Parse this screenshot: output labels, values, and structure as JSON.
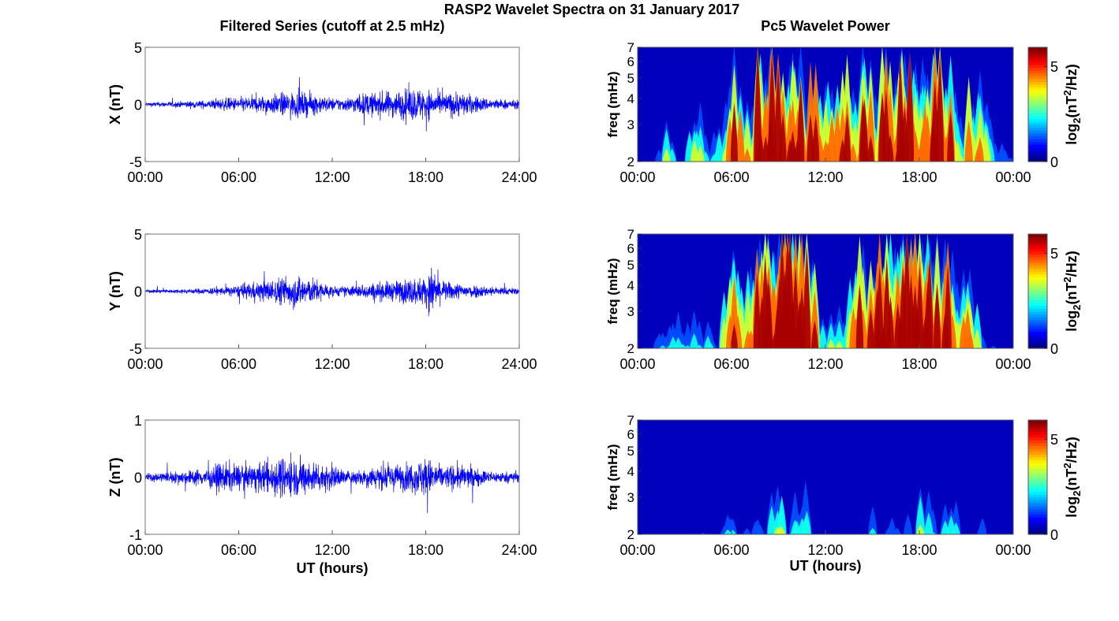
{
  "figure_title": "RASP2 Wavelet Spectra on 31 January 2017",
  "left_column_title": "Filtered Series (cutoff at 2.5 mHz)",
  "right_column_title": "Pc5 Wavelet Power",
  "colors": {
    "trace": "#0000ff",
    "axes": "#000000",
    "background": "#ffffff"
  },
  "chart_data": [
    {
      "type": "line",
      "title": "Filtered Series (cutoff at 2.5 mHz)",
      "ylabel": "X (nT)",
      "xlabel": "",
      "xlim_hours": [
        0,
        24
      ],
      "ylim": [
        -5,
        5
      ],
      "xticks": [
        "00:00",
        "06:00",
        "12:00",
        "18:00",
        "24:00"
      ],
      "yticks": [
        "-5",
        "0",
        "5"
      ],
      "envelope": {
        "hours": [
          0,
          2,
          4,
          5,
          6,
          8,
          9,
          10,
          11,
          12,
          13,
          14,
          15,
          16,
          17,
          18,
          19,
          20,
          21,
          22,
          24
        ],
        "amplitude_nT": [
          0.2,
          0.3,
          0.4,
          0.6,
          0.7,
          0.9,
          1.2,
          1.2,
          1.0,
          0.6,
          0.7,
          1.1,
          1.2,
          1.3,
          1.6,
          1.6,
          1.0,
          1.3,
          0.9,
          0.6,
          0.4
        ]
      }
    },
    {
      "type": "heatmap",
      "title": "Pc5 Wavelet Power",
      "ylabel": "freq (mHz)",
      "xlabel": "",
      "xlim_hours": [
        0,
        24
      ],
      "ylim_mHz": [
        2,
        7
      ],
      "yscale": "log",
      "xticks": [
        "00:00",
        "06:00",
        "12:00",
        "18:00",
        "00:00"
      ],
      "yticks": [
        "2",
        "3",
        "4",
        "5",
        "6",
        "7"
      ],
      "colorbar": {
        "label_base": "log",
        "label_sub": "2",
        "label_mid": "(nT",
        "label_sup": "2",
        "label_end": "/Hz)",
        "range": [
          0,
          6
        ],
        "ticks": [
          "0",
          "5"
        ],
        "colormap": "jet"
      },
      "activity": {
        "hours": [
          0,
          1,
          2,
          3,
          4,
          5,
          6,
          7,
          8,
          9,
          10,
          11,
          12,
          13,
          14,
          15,
          16,
          17,
          18,
          19,
          20,
          21,
          22,
          23,
          24
        ],
        "level": [
          0.05,
          0.2,
          0.45,
          0.35,
          0.55,
          0.3,
          0.8,
          0.75,
          0.95,
          1.0,
          0.95,
          0.85,
          0.6,
          0.7,
          0.85,
          0.9,
          0.85,
          0.95,
          1.0,
          0.9,
          0.85,
          0.75,
          0.6,
          0.35,
          0.1
        ]
      }
    },
    {
      "type": "line",
      "ylabel": "Y (nT)",
      "xlabel": "",
      "xlim_hours": [
        0,
        24
      ],
      "ylim": [
        -5,
        5
      ],
      "xticks": [
        "00:00",
        "06:00",
        "12:00",
        "18:00",
        "24:00"
      ],
      "yticks": [
        "-5",
        "0",
        "5"
      ],
      "envelope": {
        "hours": [
          0,
          2,
          4,
          5,
          6,
          7,
          8,
          9,
          10,
          11,
          12,
          13,
          14,
          15,
          16,
          17,
          18,
          18.5,
          19,
          20,
          21,
          22,
          24
        ],
        "amplitude_nT": [
          0.15,
          0.2,
          0.3,
          0.4,
          0.6,
          0.9,
          1.1,
          1.5,
          1.6,
          1.1,
          0.5,
          0.5,
          0.7,
          0.9,
          1.0,
          1.3,
          1.4,
          2.5,
          1.0,
          0.8,
          0.7,
          0.5,
          0.3
        ]
      }
    },
    {
      "type": "heatmap",
      "ylabel": "freq (mHz)",
      "xlabel": "",
      "xlim_hours": [
        0,
        24
      ],
      "ylim_mHz": [
        2,
        7
      ],
      "yscale": "log",
      "xticks": [
        "00:00",
        "06:00",
        "12:00",
        "18:00",
        "00:00"
      ],
      "yticks": [
        "2",
        "3",
        "4",
        "5",
        "6",
        "7"
      ],
      "colorbar": {
        "label_base": "log",
        "label_sub": "2",
        "label_mid": "(nT",
        "label_sup": "2",
        "label_end": "/Hz)",
        "range": [
          0,
          6
        ],
        "ticks": [
          "0",
          "5"
        ],
        "colormap": "jet"
      },
      "activity": {
        "hours": [
          0,
          1,
          2,
          3,
          4,
          5,
          6,
          7,
          8,
          9,
          10,
          11,
          12,
          13,
          14,
          15,
          16,
          17,
          18,
          19,
          20,
          21,
          22,
          23,
          24
        ],
        "level": [
          0.05,
          0.15,
          0.35,
          0.3,
          0.4,
          0.3,
          0.75,
          0.8,
          0.9,
          1.0,
          1.0,
          0.95,
          0.4,
          0.55,
          0.8,
          0.9,
          0.9,
          0.9,
          1.0,
          0.9,
          0.85,
          0.8,
          0.35,
          0.1,
          0.05
        ]
      }
    },
    {
      "type": "line",
      "ylabel": "Z (nT)",
      "xlabel": "UT (hours)",
      "xlim_hours": [
        0,
        24
      ],
      "ylim": [
        -1,
        1
      ],
      "xticks": [
        "00:00",
        "06:00",
        "12:00",
        "18:00",
        "24:00"
      ],
      "yticks": [
        "-1",
        "0",
        "1"
      ],
      "envelope": {
        "hours": [
          0,
          2,
          4,
          5,
          6,
          7,
          8,
          9,
          10,
          11,
          12,
          13,
          14,
          15,
          16,
          17,
          18,
          19,
          20,
          21,
          22,
          24
        ],
        "amplitude_nT": [
          0.08,
          0.12,
          0.18,
          0.3,
          0.25,
          0.25,
          0.35,
          0.4,
          0.35,
          0.3,
          0.25,
          0.12,
          0.18,
          0.25,
          0.25,
          0.28,
          0.4,
          0.22,
          0.25,
          0.2,
          0.12,
          0.1
        ]
      }
    },
    {
      "type": "heatmap",
      "ylabel": "freq (mHz)",
      "xlabel": "UT (hours)",
      "xlim_hours": [
        0,
        24
      ],
      "ylim_mHz": [
        2,
        7
      ],
      "yscale": "log",
      "xticks": [
        "00:00",
        "06:00",
        "12:00",
        "18:00",
        "00:00"
      ],
      "yticks": [
        "2",
        "3",
        "4",
        "5",
        "6",
        "7"
      ],
      "colorbar": {
        "label_base": "log",
        "label_sub": "2",
        "label_mid": "(nT",
        "label_sup": "2",
        "label_end": "/Hz)",
        "range": [
          0,
          6
        ],
        "ticks": [
          "0",
          "5"
        ],
        "colormap": "jet"
      },
      "activity": {
        "hours": [
          0,
          1,
          2,
          3,
          4,
          5,
          6,
          7,
          8,
          9,
          10,
          11,
          12,
          13,
          14,
          15,
          16,
          17,
          18,
          19,
          20,
          21,
          22,
          23,
          24
        ],
        "level": [
          0.0,
          0.05,
          0.25,
          0.05,
          0.15,
          0.1,
          0.35,
          0.2,
          0.3,
          0.45,
          0.4,
          0.45,
          0.1,
          0.1,
          0.25,
          0.3,
          0.25,
          0.2,
          0.55,
          0.3,
          0.4,
          0.3,
          0.25,
          0.1,
          0.05
        ]
      }
    }
  ]
}
